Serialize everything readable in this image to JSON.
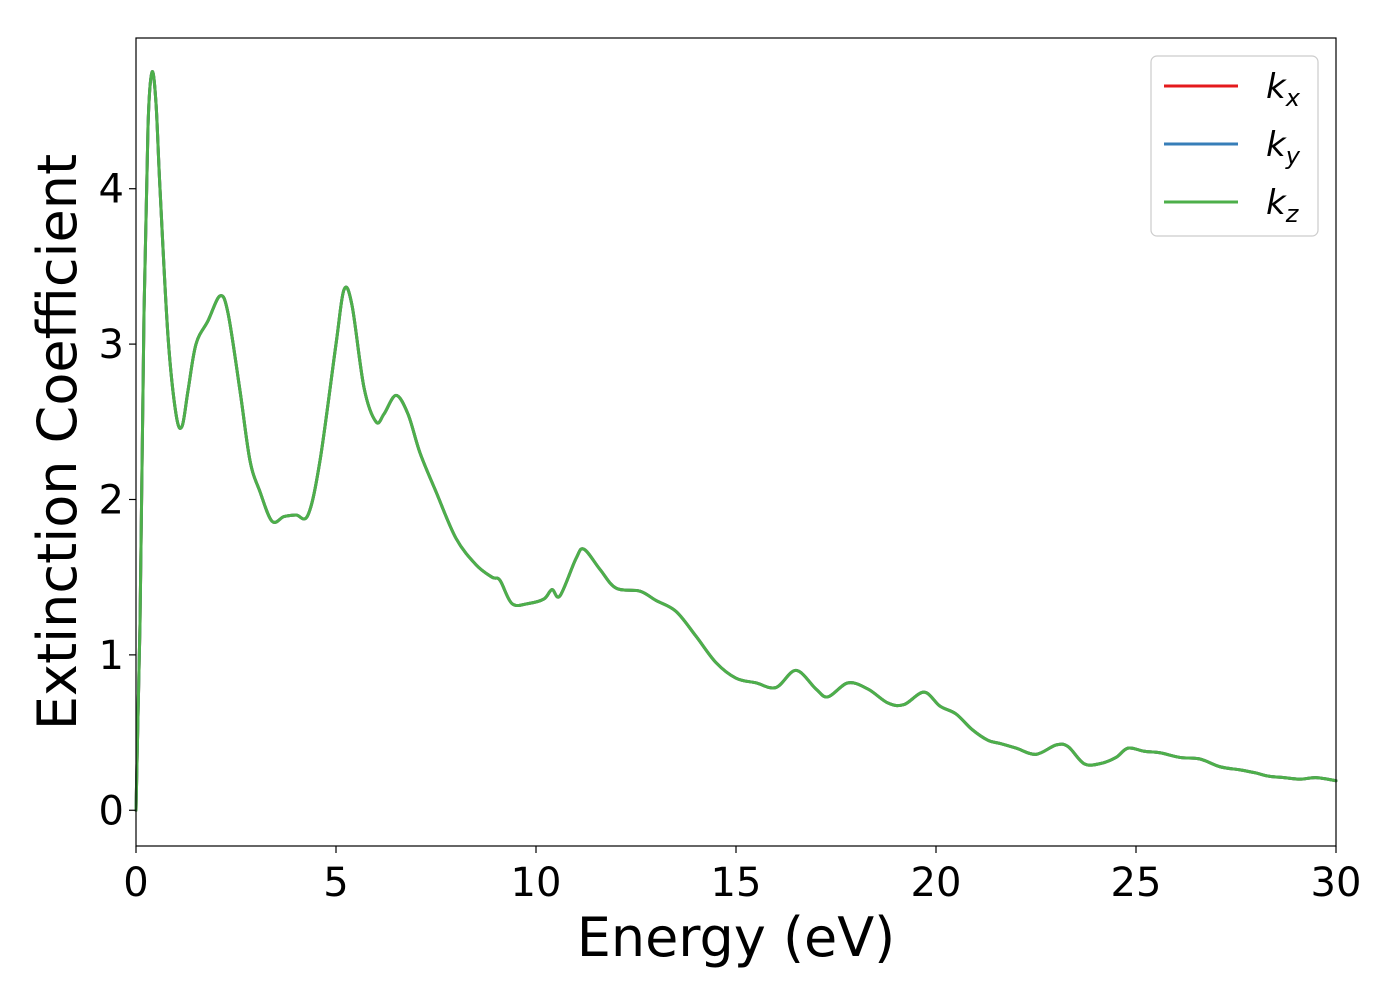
{
  "chart_data": {
    "type": "line",
    "title": "",
    "xlabel": "Energy (eV)",
    "ylabel": "Extinction Coefficient",
    "xlim": [
      0,
      30
    ],
    "ylim": [
      -0.23,
      4.97
    ],
    "xticks": [
      0,
      5,
      10,
      15,
      20,
      25,
      30
    ],
    "xtick_labels": [
      "0",
      "5",
      "10",
      "15",
      "20",
      "25",
      "30"
    ],
    "yticks": [
      0,
      1,
      2,
      3,
      4
    ],
    "ytick_labels": [
      "0",
      "1",
      "2",
      "3",
      "4"
    ],
    "grid": false,
    "legend": {
      "placement": "top-right",
      "entries": [
        {
          "base": "k",
          "sub": "x",
          "color": "#e41a1c"
        },
        {
          "base": "k",
          "sub": "y",
          "color": "#377eb8"
        },
        {
          "base": "k",
          "sub": "z",
          "color": "#4daf4a"
        }
      ]
    },
    "x": [
      0,
      0.1,
      0.2,
      0.3,
      0.4,
      0.5,
      0.6,
      0.8,
      1.0,
      1.15,
      1.3,
      1.5,
      1.8,
      2.1,
      2.3,
      2.6,
      2.85,
      3.1,
      3.4,
      3.7,
      4.0,
      4.3,
      4.6,
      5.0,
      5.2,
      5.4,
      5.7,
      6.0,
      6.2,
      6.5,
      6.8,
      7.1,
      7.5,
      8.0,
      8.5,
      8.9,
      9.1,
      9.4,
      9.8,
      10.2,
      10.4,
      10.6,
      11.0,
      11.2,
      11.6,
      12.0,
      12.6,
      13.0,
      13.5,
      14.0,
      14.5,
      15.0,
      15.5,
      16.0,
      16.5,
      17.0,
      17.3,
      17.8,
      18.3,
      18.8,
      19.2,
      19.7,
      20.1,
      20.5,
      20.9,
      21.3,
      21.6,
      22.0,
      22.5,
      23.0,
      23.3,
      23.7,
      24.1,
      24.5,
      24.8,
      25.2,
      25.6,
      26.1,
      26.6,
      27.1,
      27.6,
      28.0,
      28.3,
      28.7,
      29.1,
      29.5,
      30.0
    ],
    "series": [
      {
        "name": "k_x",
        "color": "#e41a1c",
        "values": [
          0.0,
          1.2,
          3.2,
          4.4,
          4.75,
          4.55,
          4.0,
          3.05,
          2.55,
          2.47,
          2.7,
          3.0,
          3.15,
          3.31,
          3.2,
          2.7,
          2.25,
          2.05,
          1.86,
          1.89,
          1.9,
          1.9,
          2.25,
          3.0,
          3.35,
          3.25,
          2.72,
          2.5,
          2.55,
          2.67,
          2.55,
          2.3,
          2.05,
          1.75,
          1.58,
          1.5,
          1.48,
          1.33,
          1.33,
          1.36,
          1.42,
          1.38,
          1.62,
          1.68,
          1.55,
          1.43,
          1.41,
          1.35,
          1.28,
          1.12,
          0.95,
          0.85,
          0.82,
          0.79,
          0.9,
          0.78,
          0.73,
          0.82,
          0.78,
          0.69,
          0.68,
          0.76,
          0.67,
          0.62,
          0.52,
          0.45,
          0.43,
          0.4,
          0.36,
          0.42,
          0.41,
          0.3,
          0.3,
          0.34,
          0.4,
          0.38,
          0.37,
          0.34,
          0.33,
          0.28,
          0.26,
          0.24,
          0.22,
          0.21,
          0.2,
          0.21,
          0.19
        ]
      },
      {
        "name": "k_y",
        "color": "#377eb8",
        "values": [
          0.0,
          1.2,
          3.2,
          4.4,
          4.75,
          4.55,
          4.0,
          3.05,
          2.55,
          2.47,
          2.7,
          3.0,
          3.15,
          3.31,
          3.2,
          2.7,
          2.25,
          2.05,
          1.86,
          1.89,
          1.9,
          1.9,
          2.25,
          3.0,
          3.35,
          3.25,
          2.72,
          2.5,
          2.55,
          2.67,
          2.55,
          2.3,
          2.05,
          1.75,
          1.58,
          1.5,
          1.48,
          1.33,
          1.33,
          1.36,
          1.42,
          1.38,
          1.62,
          1.68,
          1.55,
          1.43,
          1.41,
          1.35,
          1.28,
          1.12,
          0.95,
          0.85,
          0.82,
          0.79,
          0.9,
          0.78,
          0.73,
          0.82,
          0.78,
          0.69,
          0.68,
          0.76,
          0.67,
          0.62,
          0.52,
          0.45,
          0.43,
          0.4,
          0.36,
          0.42,
          0.41,
          0.3,
          0.3,
          0.34,
          0.4,
          0.38,
          0.37,
          0.34,
          0.33,
          0.28,
          0.26,
          0.24,
          0.22,
          0.21,
          0.2,
          0.21,
          0.19
        ]
      },
      {
        "name": "k_z",
        "color": "#4daf4a",
        "values": [
          0.0,
          1.2,
          3.2,
          4.4,
          4.75,
          4.55,
          4.0,
          3.05,
          2.55,
          2.47,
          2.7,
          3.0,
          3.15,
          3.31,
          3.2,
          2.7,
          2.25,
          2.05,
          1.86,
          1.89,
          1.9,
          1.9,
          2.25,
          3.0,
          3.35,
          3.25,
          2.72,
          2.5,
          2.55,
          2.67,
          2.55,
          2.3,
          2.05,
          1.75,
          1.58,
          1.5,
          1.48,
          1.33,
          1.33,
          1.36,
          1.42,
          1.38,
          1.62,
          1.68,
          1.55,
          1.43,
          1.41,
          1.35,
          1.28,
          1.12,
          0.95,
          0.85,
          0.82,
          0.79,
          0.9,
          0.78,
          0.73,
          0.82,
          0.78,
          0.69,
          0.68,
          0.76,
          0.67,
          0.62,
          0.52,
          0.45,
          0.43,
          0.4,
          0.36,
          0.42,
          0.41,
          0.3,
          0.3,
          0.34,
          0.4,
          0.38,
          0.37,
          0.34,
          0.33,
          0.28,
          0.26,
          0.24,
          0.22,
          0.21,
          0.2,
          0.21,
          0.19
        ]
      }
    ]
  }
}
